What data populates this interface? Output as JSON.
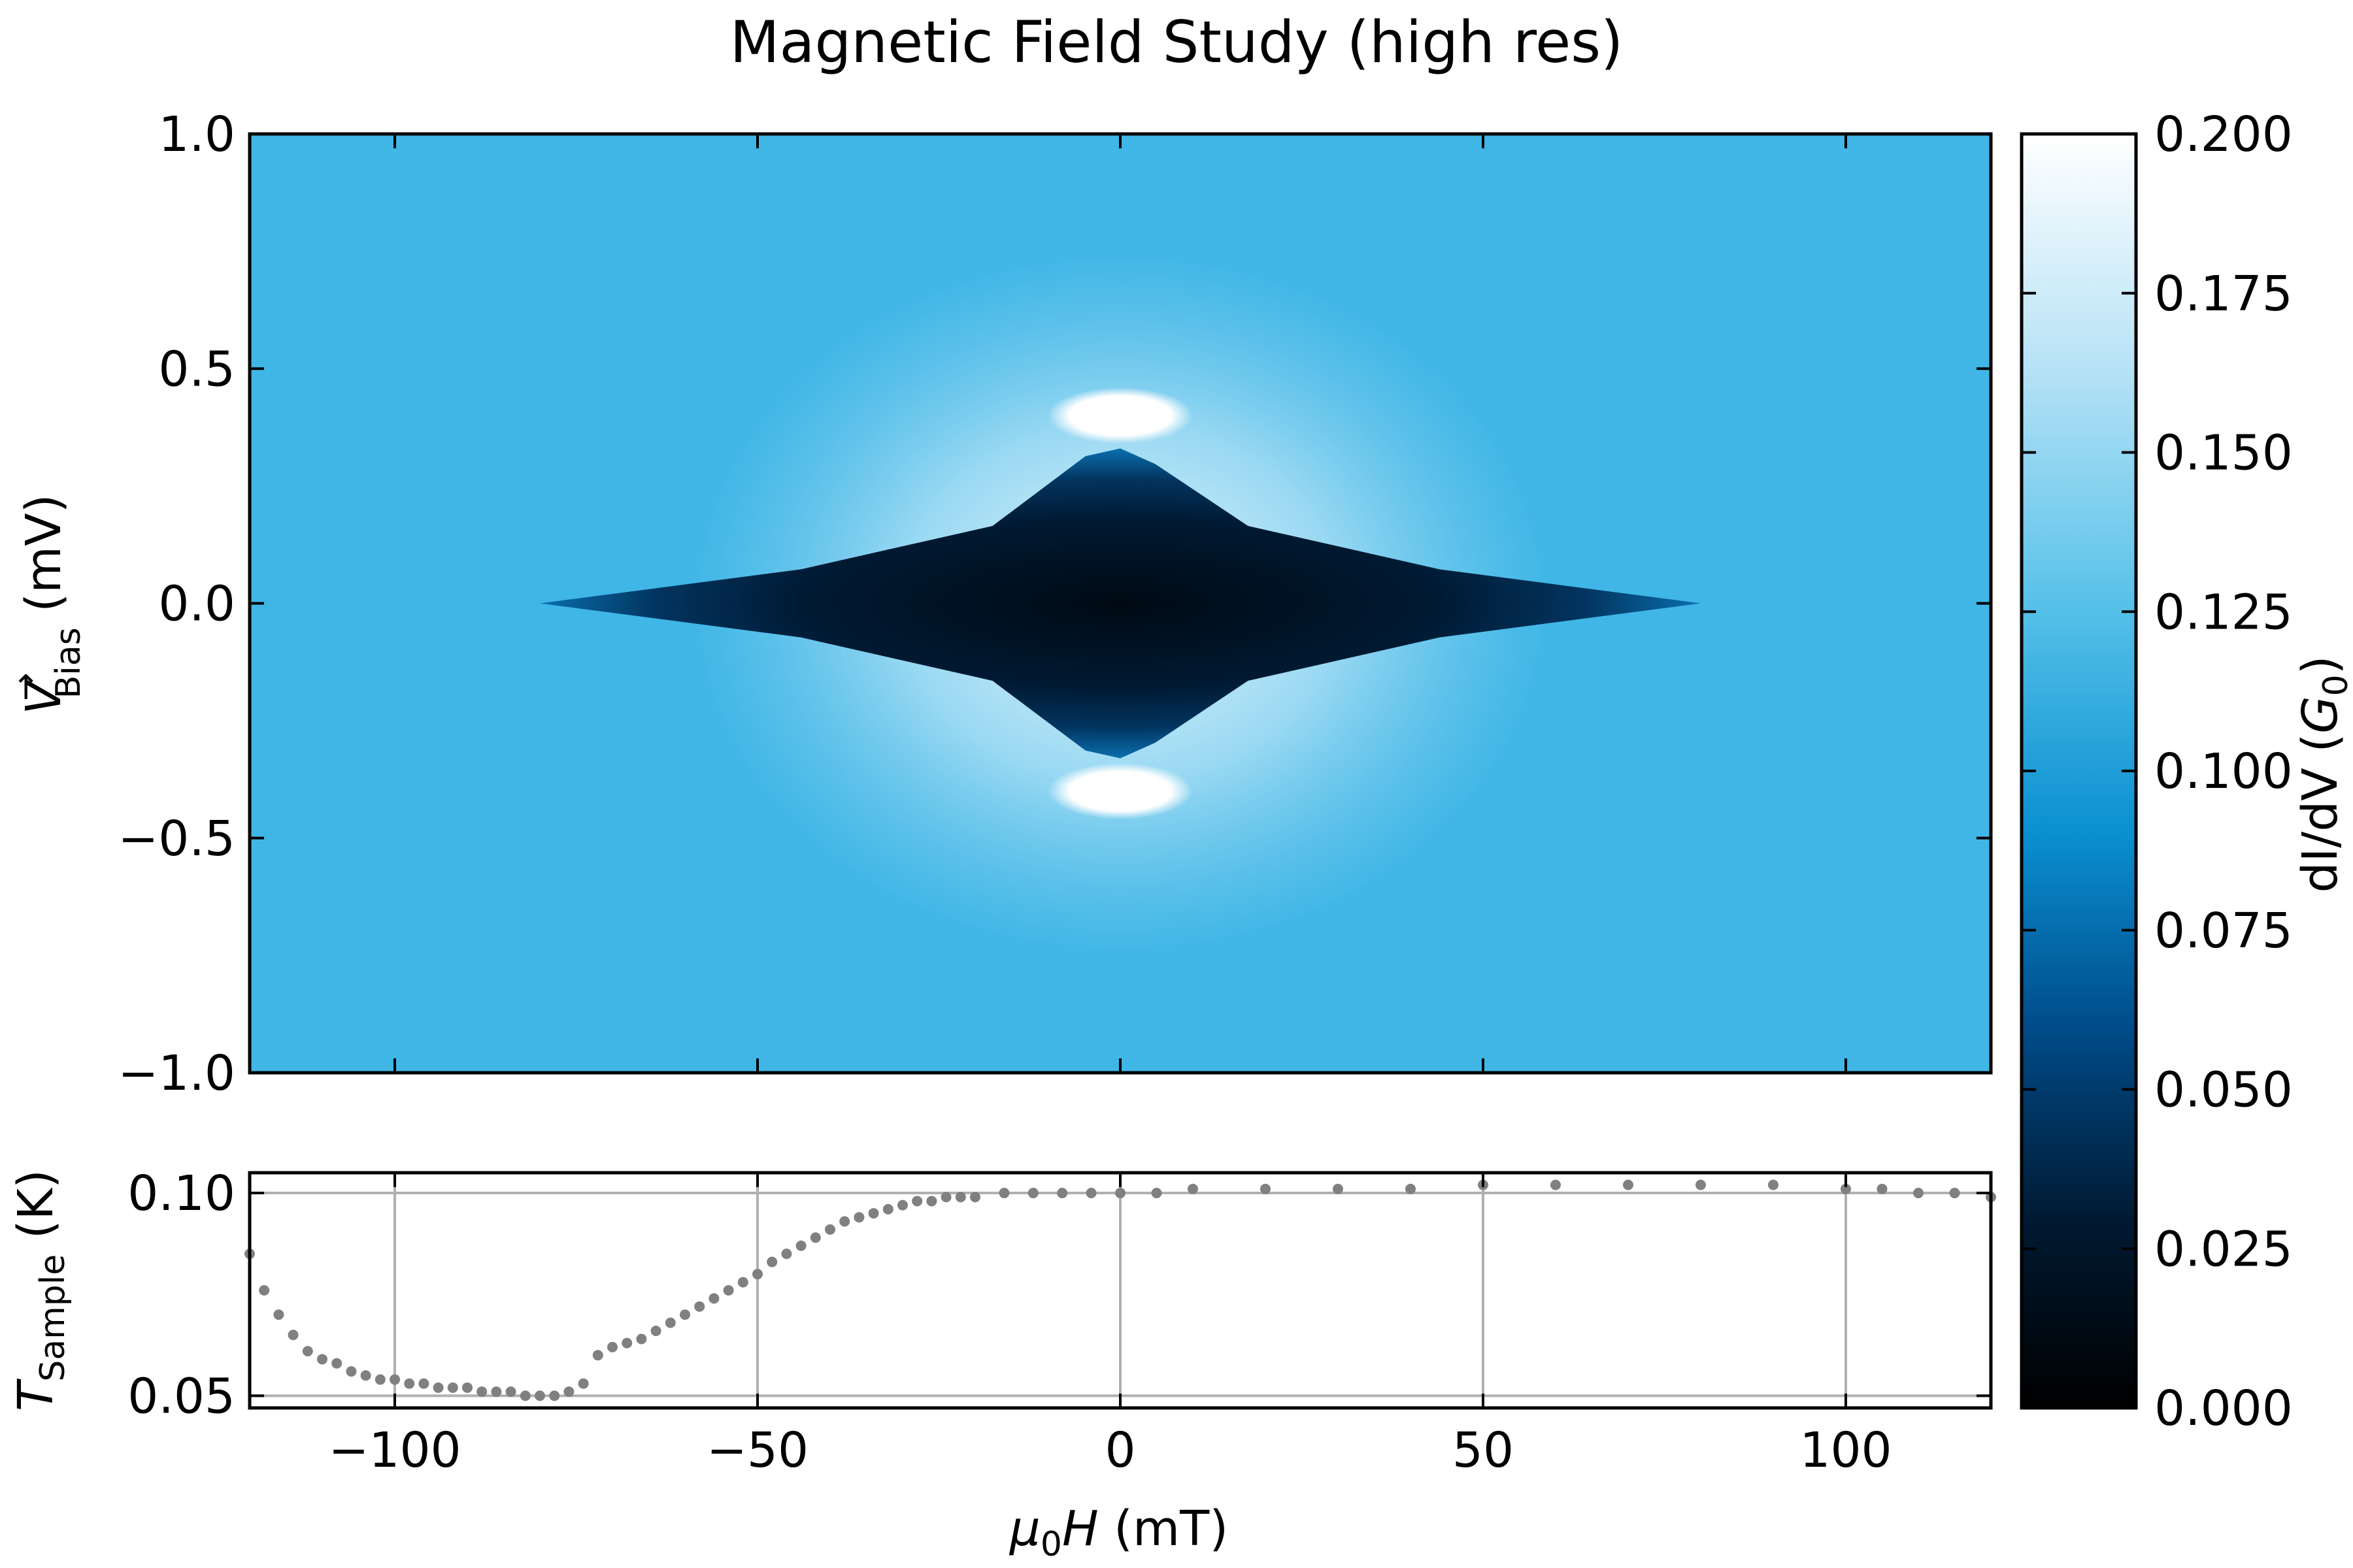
{
  "chart_data": [
    {
      "type": "heatmap",
      "title": "Magnetic Field Study (high res)",
      "xlabel_parts": [
        "μ",
        "0",
        "H",
        " (mT)"
      ],
      "ylabel_parts": [
        "V",
        "→",
        "Bias",
        " (mV)"
      ],
      "xlim": [
        -120,
        120
      ],
      "ylim": [
        -1.0,
        1.0
      ],
      "xticks": [
        -100,
        -50,
        0,
        50,
        100
      ],
      "yticks": [
        -1.0,
        -0.5,
        0.0,
        0.5,
        1.0
      ],
      "ytick_labels": [
        "−1.0",
        "−0.5",
        "0.0",
        "0.5",
        "1.0"
      ],
      "colorbar": {
        "label_parts": [
          "dI/dV (",
          "G",
          "0",
          ")"
        ],
        "range": [
          0.0,
          0.2
        ],
        "ticks": [
          0.0,
          0.025,
          0.05,
          0.075,
          0.1,
          0.125,
          0.15,
          0.175,
          0.2
        ],
        "tick_labels": [
          "0.000",
          "0.025",
          "0.050",
          "0.075",
          "0.100",
          "0.125",
          "0.150",
          "0.175",
          "0.200"
        ],
        "colors": [
          "#000000",
          "#001a33",
          "#004c8a",
          "#0a8fd0",
          "#52bfe8",
          "#b8e3f6",
          "#ffffff"
        ]
      },
      "background_conductance": 0.095,
      "features": [
        {
          "name": "gap",
          "x_center": 0,
          "half_width_x": 80,
          "half_gap_at_zero_field": 0.33,
          "conductance": 0.0
        },
        {
          "name": "coherence-peaks",
          "x_center": 0,
          "x_half_width": 10,
          "bias": [
            0.4,
            -0.4
          ],
          "conductance": 0.2
        }
      ]
    },
    {
      "type": "scatter",
      "xlabel": "",
      "ylabel_parts": [
        "T",
        "Sample",
        " (K)"
      ],
      "xlim": [
        -120,
        120
      ],
      "ylim": [
        0.047,
        0.105
      ],
      "xticks": [
        -100,
        -50,
        0,
        50,
        100
      ],
      "xtick_labels": [
        "−100",
        "−50",
        "0",
        "50",
        "100"
      ],
      "yticks": [
        0.05,
        0.1
      ],
      "ytick_labels": [
        "0.05",
        "0.10"
      ],
      "grid": true,
      "marker_color": "#808080",
      "x": [
        -120,
        -118,
        -116,
        -114,
        -112,
        -110,
        -108,
        -106,
        -104,
        -102,
        -100,
        -98,
        -96,
        -94,
        -92,
        -90,
        -88,
        -86,
        -84,
        -82,
        -80,
        -78,
        -76,
        -74,
        -72,
        -70,
        -68,
        -66,
        -64,
        -62,
        -60,
        -58,
        -56,
        -54,
        -52,
        -50,
        -48,
        -46,
        -44,
        -42,
        -40,
        -38,
        -36,
        -34,
        -32,
        -30,
        -28,
        -26,
        -24,
        -22,
        -20,
        -16,
        -12,
        -8,
        -4,
        0,
        5,
        10,
        20,
        30,
        40,
        50,
        60,
        70,
        80,
        90,
        100,
        105,
        110,
        115,
        120
      ],
      "y": [
        0.085,
        0.076,
        0.07,
        0.065,
        0.061,
        0.059,
        0.058,
        0.056,
        0.055,
        0.054,
        0.054,
        0.053,
        0.053,
        0.052,
        0.052,
        0.052,
        0.051,
        0.051,
        0.051,
        0.05,
        0.05,
        0.05,
        0.051,
        0.053,
        0.06,
        0.062,
        0.063,
        0.064,
        0.066,
        0.068,
        0.07,
        0.072,
        0.074,
        0.076,
        0.078,
        0.08,
        0.083,
        0.085,
        0.087,
        0.089,
        0.091,
        0.093,
        0.094,
        0.095,
        0.096,
        0.097,
        0.098,
        0.098,
        0.099,
        0.099,
        0.099,
        0.1,
        0.1,
        0.1,
        0.1,
        0.1,
        0.1,
        0.101,
        0.101,
        0.101,
        0.101,
        0.102,
        0.102,
        0.102,
        0.102,
        0.102,
        0.101,
        0.101,
        0.1,
        0.1,
        0.099
      ]
    }
  ]
}
